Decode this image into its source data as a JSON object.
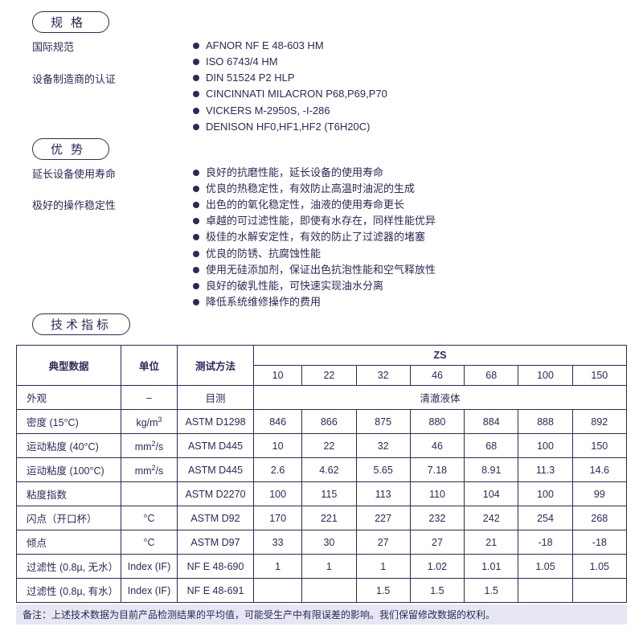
{
  "sections": {
    "spec": {
      "title": "规格"
    },
    "advantage": {
      "title": "优势"
    },
    "tech": {
      "title": "技术指标"
    }
  },
  "spec_left": [
    "国际规范",
    "设备制造商的认证"
  ],
  "spec_bullets": [
    "AFNOR NF E 48-603 HM",
    "ISO 6743/4 HM",
    "DIN 51524 P2 HLP",
    "CINCINNATI MILACRON P68,P69,P70",
    "VICKERS M-2950S, -I-286",
    "DENISON HF0,HF1,HF2 (T6H20C)"
  ],
  "adv_left": [
    "延长设备使用寿命",
    "极好的操作稳定性"
  ],
  "adv_bullets": [
    "良好的抗磨性能，延长设备的使用寿命",
    "优良的热稳定性，有效防止高温时油泥的生成",
    "出色的的氧化稳定性，油液的使用寿命更长",
    "卓越的可过滤性能，即使有水存在，同样性能优异",
    "极佳的水解安定性，有效的防止了过滤器的堵塞",
    "优良的防锈、抗腐蚀性能",
    "使用无硅添加剂，保证出色抗泡性能和空气释放性",
    "良好的破乳性能，可快速实现油水分离",
    "降低系统维修操作的费用"
  ],
  "table": {
    "head_typical": "典型数据",
    "head_unit": "单位",
    "head_method": "测试方法",
    "head_group": "ZS",
    "grades": [
      "10",
      "22",
      "32",
      "46",
      "68",
      "100",
      "150"
    ],
    "appearance_label": "外观",
    "appearance_method": "目测",
    "appearance_value": "清澈液体",
    "rows": [
      {
        "label": "密度 (15°C)",
        "unit": "kg/m³",
        "method": "ASTM D1298",
        "v": [
          "846",
          "866",
          "875",
          "880",
          "884",
          "888",
          "892"
        ]
      },
      {
        "label": "运动粘度 (40°C)",
        "unit": "mm²/s",
        "method": "ASTM D445",
        "v": [
          "10",
          "22",
          "32",
          "46",
          "68",
          "100",
          "150"
        ]
      },
      {
        "label": "运动粘度 (100°C)",
        "unit": "mm²/s",
        "method": "ASTM D445",
        "v": [
          "2.6",
          "4.62",
          "5.65",
          "7.18",
          "8.91",
          "11.3",
          "14.6"
        ]
      },
      {
        "label": "粘度指数",
        "unit": "",
        "method": "ASTM D2270",
        "v": [
          "100",
          "115",
          "113",
          "110",
          "104",
          "100",
          "99"
        ]
      },
      {
        "label": "闪点（开口杯）",
        "unit": "°C",
        "method": "ASTM D92",
        "v": [
          "170",
          "221",
          "227",
          "232",
          "242",
          "254",
          "268"
        ]
      },
      {
        "label": "倾点",
        "unit": "°C",
        "method": "ASTM D97",
        "v": [
          "33",
          "30",
          "27",
          "27",
          "21",
          "-18",
          "-18"
        ]
      },
      {
        "label": "过滤性 (0.8µ, 无水）",
        "unit": "Index (IF)",
        "method": "NF E 48-690",
        "v": [
          "1",
          "1",
          "1",
          "1.02",
          "1.01",
          "1.05",
          "1.05"
        ]
      },
      {
        "label": "过滤性 (0.8µ, 有水）",
        "unit": "Index (IF)",
        "method": "NF E 48-691",
        "v": [
          "",
          "",
          "1.5",
          "1.5",
          "1.5",
          "",
          ""
        ]
      }
    ]
  },
  "footnote": "备注：上述技术数据为目前产品检测结果的平均值，可能受生产中有限误差的影响。我们保留修改数据的权利。"
}
